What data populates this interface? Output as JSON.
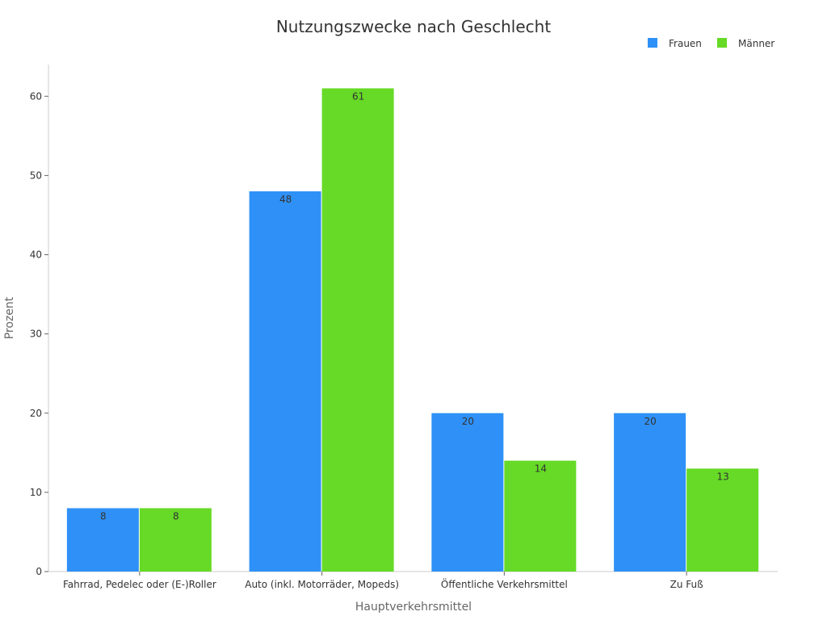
{
  "chart_data": {
    "type": "bar",
    "title": "Nutzungszwecke nach Geschlecht",
    "xlabel": "Hauptverkehrsmittel",
    "ylabel": "Prozent",
    "categories": [
      "Fahrrad, Pedelec oder (E-)Roller",
      "Auto (inkl. Motorräder, Mopeds)",
      "Öffentliche Verkehrsmittel",
      "Zu Fuß"
    ],
    "series": [
      {
        "name": "Frauen",
        "values": [
          8,
          48,
          20,
          20
        ],
        "color": "#2f91f7"
      },
      {
        "name": "Männer",
        "values": [
          8,
          61,
          14,
          13
        ],
        "color": "#66da26"
      }
    ],
    "ylim": [
      0,
      64
    ],
    "yticks": [
      0,
      10,
      20,
      30,
      40,
      50,
      60
    ],
    "grid": false,
    "legend": "top-right",
    "data_labels": true
  }
}
